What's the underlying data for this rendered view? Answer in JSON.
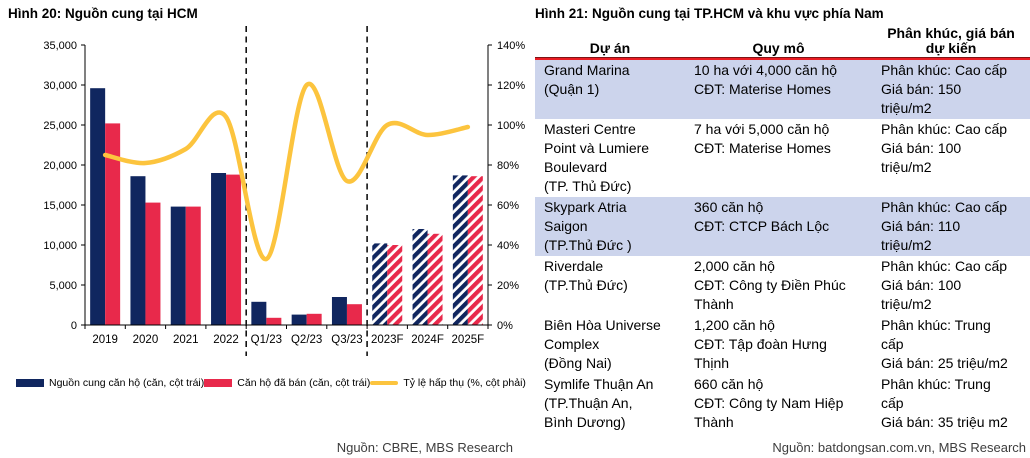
{
  "left_panel": {
    "title": "Hình 20: Nguồn cung tại HCM",
    "source": "Nguồn: CBRE, MBS Research"
  },
  "chart_data": {
    "type": "bar",
    "title": "Hình 20: Nguồn cung tại HCM",
    "categories": [
      "2019",
      "2020",
      "2021",
      "2022",
      "Q1/23",
      "Q2/23",
      "Q3/23",
      "2023F",
      "2024F",
      "2025F"
    ],
    "series": [
      {
        "name": "Nguồn cung căn hộ (căn, cột trái)",
        "type": "bar",
        "axis": "left",
        "color": "#10265f",
        "values": [
          29600,
          18600,
          14800,
          19000,
          2900,
          1300,
          3500,
          10200,
          12000,
          18700
        ]
      },
      {
        "name": "Căn hộ đã bán (căn, cột trái)",
        "type": "bar",
        "axis": "left",
        "color": "#e8294b",
        "values": [
          25200,
          15300,
          14800,
          18800,
          900,
          1400,
          2600,
          10000,
          11400,
          18600
        ]
      },
      {
        "name": "Tỷ lệ hấp thụ (%, cột phải)",
        "type": "line",
        "axis": "right",
        "color": "#fcc43e",
        "values": [
          85,
          81,
          88,
          104,
          33,
          120,
          72,
          100,
          95,
          99
        ]
      }
    ],
    "left_axis": {
      "min": 0,
      "max": 35000,
      "ticks": [
        "0",
        "5,000",
        "10,000",
        "15,000",
        "20,000",
        "25,000",
        "30,000",
        "35,000"
      ]
    },
    "right_axis": {
      "min": 0,
      "max": 140,
      "ticks": [
        "0%",
        "20%",
        "40%",
        "60%",
        "80%",
        "100%",
        "120%",
        "140%"
      ]
    },
    "forecast_categories": [
      "2023F",
      "2024F",
      "2025F"
    ],
    "separators_after_index": [
      3,
      6
    ],
    "legend_position": "bottom",
    "grid": false
  },
  "right_panel": {
    "title": "Hình 21: Nguồn cung tại TP.HCM và khu vực phía Nam",
    "source": "Nguồn: batdongsan.com.vn, MBS Research",
    "table": {
      "headers": [
        "Dự án",
        "Quy mô",
        "Phân khúc, giá bán\ndự kiến"
      ],
      "rows": [
        {
          "project": "Grand Marina\n(Quận 1)",
          "scale": "10 ha với 4,000 căn hộ\nCĐT: Materise Homes",
          "segment": "Phân khúc: Cao cấp\nGiá bán: 150\ntriệu/m2",
          "highlighted": true
        },
        {
          "project": "Masteri Centre\nPoint và Lumiere\nBoulevard\n(TP. Thủ Đức)",
          "scale": "7 ha với 5,000 căn hộ\nCĐT: Materise Homes",
          "segment": "Phân khúc: Cao cấp\nGiá bán: 100\ntriệu/m2",
          "highlighted": false
        },
        {
          "project": "Skypark Atria\nSaigon\n(TP.Thủ Đức )",
          "scale": " 360 căn hộ\nCĐT: CTCP Bách Lộc",
          "segment": "Phân khúc: Cao cấp\nGiá bán: 110\ntriệu/m2",
          "highlighted": true
        },
        {
          "project": "Riverdale\n(TP.Thủ Đức)",
          "scale": "2,000 căn hộ\nCĐT: Công ty Điền Phúc\nThành",
          "segment": "Phân khúc: Cao cấp\nGiá bán: 100\ntriệu/m2",
          "highlighted": false
        },
        {
          "project": "Biên Hòa Universe\nComplex\n(Đồng Nai)",
          "scale": "1,200 căn hộ\nCĐT: Tập đoàn Hưng\nThịnh",
          "segment": "Phân khúc: Trung\ncấp\nGiá bán: 25 triệu/m2",
          "highlighted": false
        },
        {
          "project": "Symlife Thuận An\n(TP.Thuận An,\nBình Dương)",
          "scale": "660 căn hộ\nCĐT: Công ty Nam Hiệp\nThành",
          "segment": "Phân khúc: Trung\ncấp\nGiá bán: 35 triệu m2",
          "highlighted": false
        }
      ]
    }
  },
  "colors": {
    "supply_bar": "#10265f",
    "sold_bar": "#e8294b",
    "absorption_line": "#fcc43e",
    "table_highlight": "#ccd4ec",
    "header_rule_dark": "#7e1416",
    "header_rule_red": "#ea1b23",
    "axis": "#000000",
    "separator": "#111111"
  }
}
